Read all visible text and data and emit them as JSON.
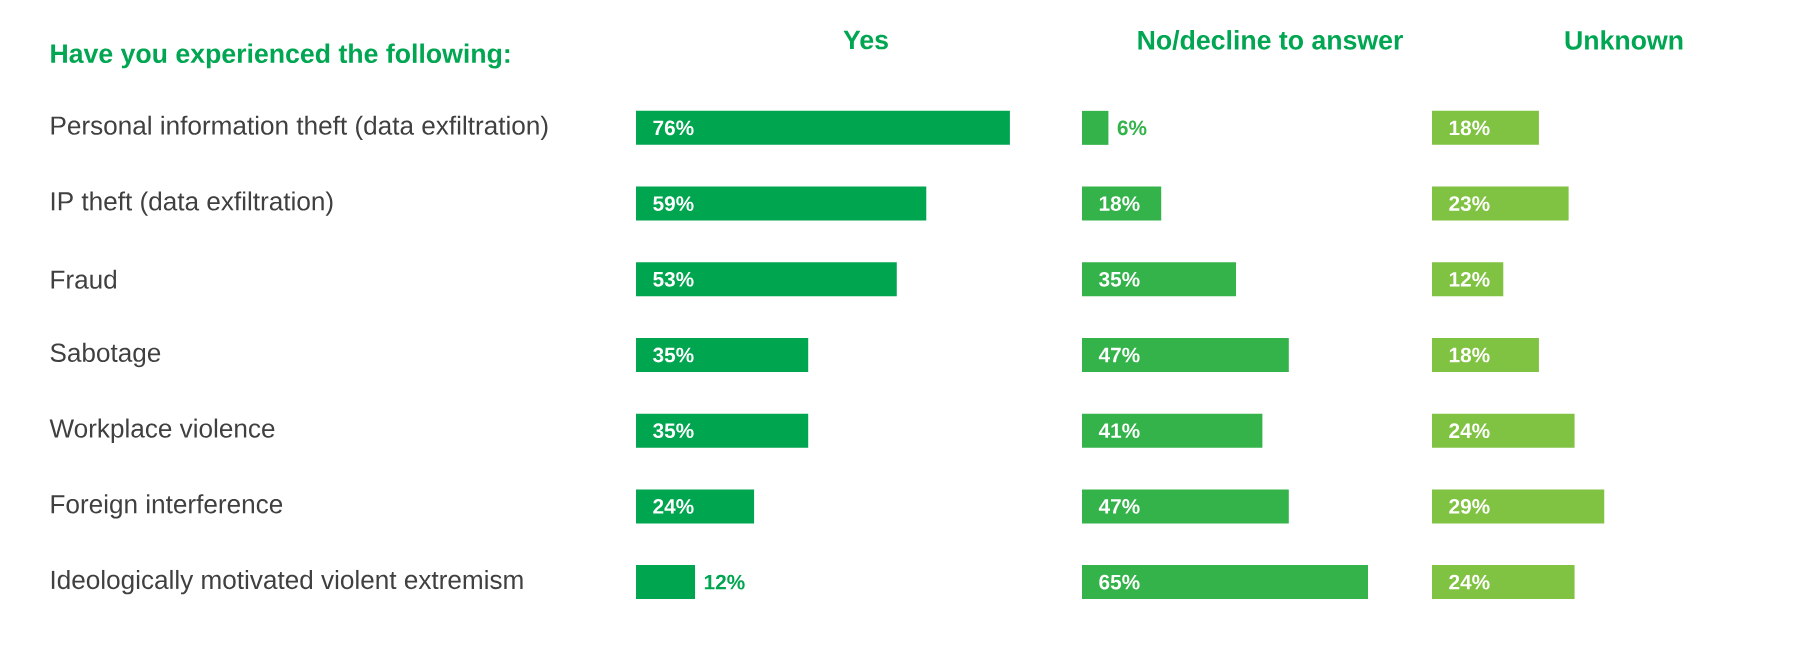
{
  "chart_data": [
    {
      "type": "bar",
      "orientation": "horizontal",
      "title": "Yes",
      "ylabel": "Have you experienced the following:",
      "tick_labels": "y",
      "categories": [
        "Personal information theft (data exfiltration)",
        "IP theft (data exfiltration)",
        "Fraud",
        "Sabotage",
        "Workplace violence",
        "Foreign interference",
        "Ideologically motivated violent extremism"
      ],
      "values": [
        76,
        59,
        53,
        35,
        35,
        24,
        12
      ],
      "color": "#00a54f",
      "value_labels": [
        "76%",
        "59%",
        "53%",
        "35%",
        "35%",
        "24%",
        "12%"
      ]
    },
    {
      "type": "bar",
      "orientation": "horizontal",
      "title": "No/decline to answer",
      "tick_labels": false,
      "values": [
        6,
        18,
        35,
        47,
        41,
        47,
        65
      ],
      "color": "#33b34a",
      "value_labels": [
        "6%",
        "18%",
        "35%",
        "47%",
        "41%",
        "47%",
        "65%"
      ]
    },
    {
      "type": "bar",
      "orientation": "horizontal",
      "title": "Unknown",
      "tick_labels": false,
      "values": [
        18,
        23,
        12,
        18,
        24,
        29,
        24
      ],
      "color": "#80c242",
      "value_labels": [
        "18%",
        "23%",
        "12%",
        "18%",
        "24%",
        "29%",
        "24%"
      ]
    }
  ]
}
